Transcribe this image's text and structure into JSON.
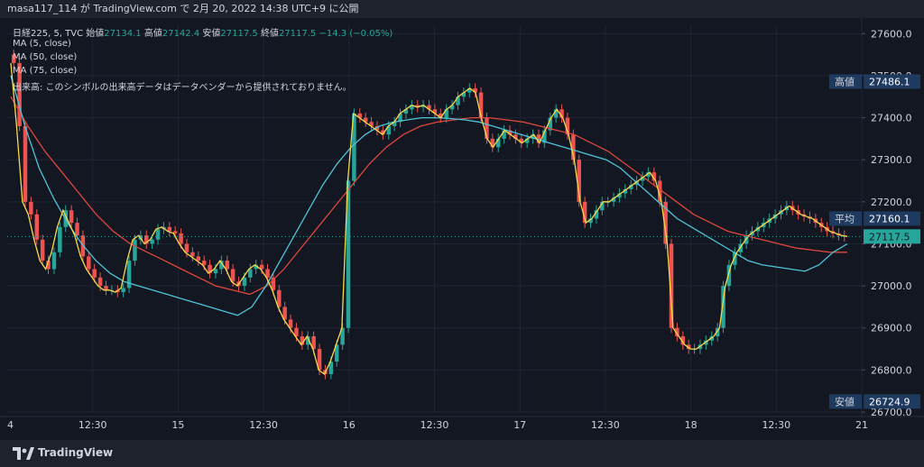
{
  "header": {
    "attribution": "masa117_114 が TradingView.com で 2月 20, 2022 14:38 UTC+9 に公開"
  },
  "legend": {
    "symbol": "日経225, 5, TVC",
    "open_label": "始値",
    "open": "27134.1",
    "high_label": "高値",
    "high": "27142.4",
    "low_label": "安値",
    "low": "27117.5",
    "close_label": "終値",
    "close": "27117.5",
    "change": "−14.3 (−0.05%)",
    "ma5": "MA (5, close)",
    "ma50": "MA (50, close)",
    "ma75": "MA (75, close)",
    "volume_note": "出来高: このシンボルの出来高データはデータベンダーから提供されておりません。"
  },
  "footer": {
    "brand": "TradingView"
  },
  "colors": {
    "background": "#131722",
    "up": "#26a69a",
    "down": "#ef5350",
    "ma5": "#f7d94c",
    "ma50": "#4fc3d7",
    "ma75": "#e0473e",
    "grid": "#1f2433"
  },
  "chart_data": {
    "type": "candlestick",
    "ylim": [
      26700,
      27620
    ],
    "y_ticks": [
      "27600.0",
      "27500.0",
      "27400.0",
      "27300.0",
      "27200.0",
      "27100.0",
      "27000.0",
      "26900.0",
      "26800.0",
      "26700.0"
    ],
    "x_tick_labels": [
      "4",
      "12:30",
      "15",
      "12:30",
      "16",
      "12:30",
      "17",
      "12:30",
      "18",
      "12:30",
      "21"
    ],
    "price_markers": [
      {
        "label": "高値",
        "value": "27486.1"
      },
      {
        "label": "平均",
        "value": "27160.1"
      },
      {
        "label": "",
        "value": "27117.5"
      },
      {
        "label": "安値",
        "value": "26724.9"
      }
    ],
    "closes": [
      27530,
      27380,
      27200,
      27170,
      27110,
      27060,
      27040,
      27080,
      27140,
      27180,
      27150,
      27120,
      27070,
      27040,
      27020,
      27000,
      26990,
      26990,
      26985,
      26995,
      27060,
      27110,
      27120,
      27100,
      27110,
      27135,
      27140,
      27130,
      27125,
      27100,
      27080,
      27070,
      27060,
      27050,
      27030,
      27040,
      27060,
      27040,
      27010,
      27000,
      27020,
      27040,
      27050,
      27040,
      27020,
      26990,
      26950,
      26920,
      26900,
      26880,
      26860,
      26880,
      26850,
      26800,
      26790,
      26820,
      26860,
      26900,
      27250,
      27410,
      27400,
      27390,
      27380,
      27370,
      27360,
      27380,
      27390,
      27410,
      27420,
      27430,
      27425,
      27430,
      27420,
      27410,
      27400,
      27420,
      27430,
      27450,
      27460,
      27470,
      27460,
      27400,
      27350,
      27330,
      27350,
      27370,
      27360,
      27350,
      27340,
      27350,
      27360,
      27340,
      27370,
      27400,
      27420,
      27400,
      27360,
      27300,
      27200,
      27150,
      27160,
      27180,
      27200,
      27200,
      27210,
      27220,
      27230,
      27240,
      27250,
      27260,
      27270,
      27250,
      27200,
      27100,
      26900,
      26880,
      26860,
      26850,
      26850,
      26860,
      26870,
      26880,
      26900,
      27000,
      27050,
      27080,
      27100,
      27120,
      27130,
      27140,
      27150,
      27160,
      27170,
      27180,
      27190,
      27180,
      27170,
      27165,
      27160,
      27150,
      27140,
      27130,
      27125,
      27120,
      27117.5
    ],
    "ma50": [
      27500,
      27380,
      27280,
      27210,
      27150,
      27100,
      27060,
      27030,
      27010,
      27000,
      26990,
      26980,
      26970,
      26960,
      26950,
      26940,
      26930,
      26950,
      27000,
      27060,
      27120,
      27180,
      27240,
      27290,
      27330,
      27360,
      27380,
      27390,
      27395,
      27400,
      27400,
      27398,
      27395,
      27390,
      27380,
      27370,
      27360,
      27350,
      27340,
      27330,
      27320,
      27310,
      27300,
      27280,
      27250,
      27220,
      27190,
      27160,
      27140,
      27120,
      27100,
      27080,
      27060,
      27050,
      27045,
      27040,
      27035,
      27050,
      27080,
      27100
    ],
    "ma75": [
      27450,
      27380,
      27320,
      27270,
      27220,
      27170,
      27130,
      27100,
      27080,
      27060,
      27040,
      27020,
      27000,
      26990,
      26980,
      27000,
      27040,
      27090,
      27140,
      27190,
      27240,
      27290,
      27330,
      27360,
      27380,
      27390,
      27395,
      27400,
      27400,
      27395,
      27390,
      27380,
      27370,
      27360,
      27340,
      27320,
      27290,
      27260,
      27230,
      27200,
      27170,
      27150,
      27130,
      27120,
      27110,
      27100,
      27090,
      27085,
      27080,
      27080
    ]
  }
}
